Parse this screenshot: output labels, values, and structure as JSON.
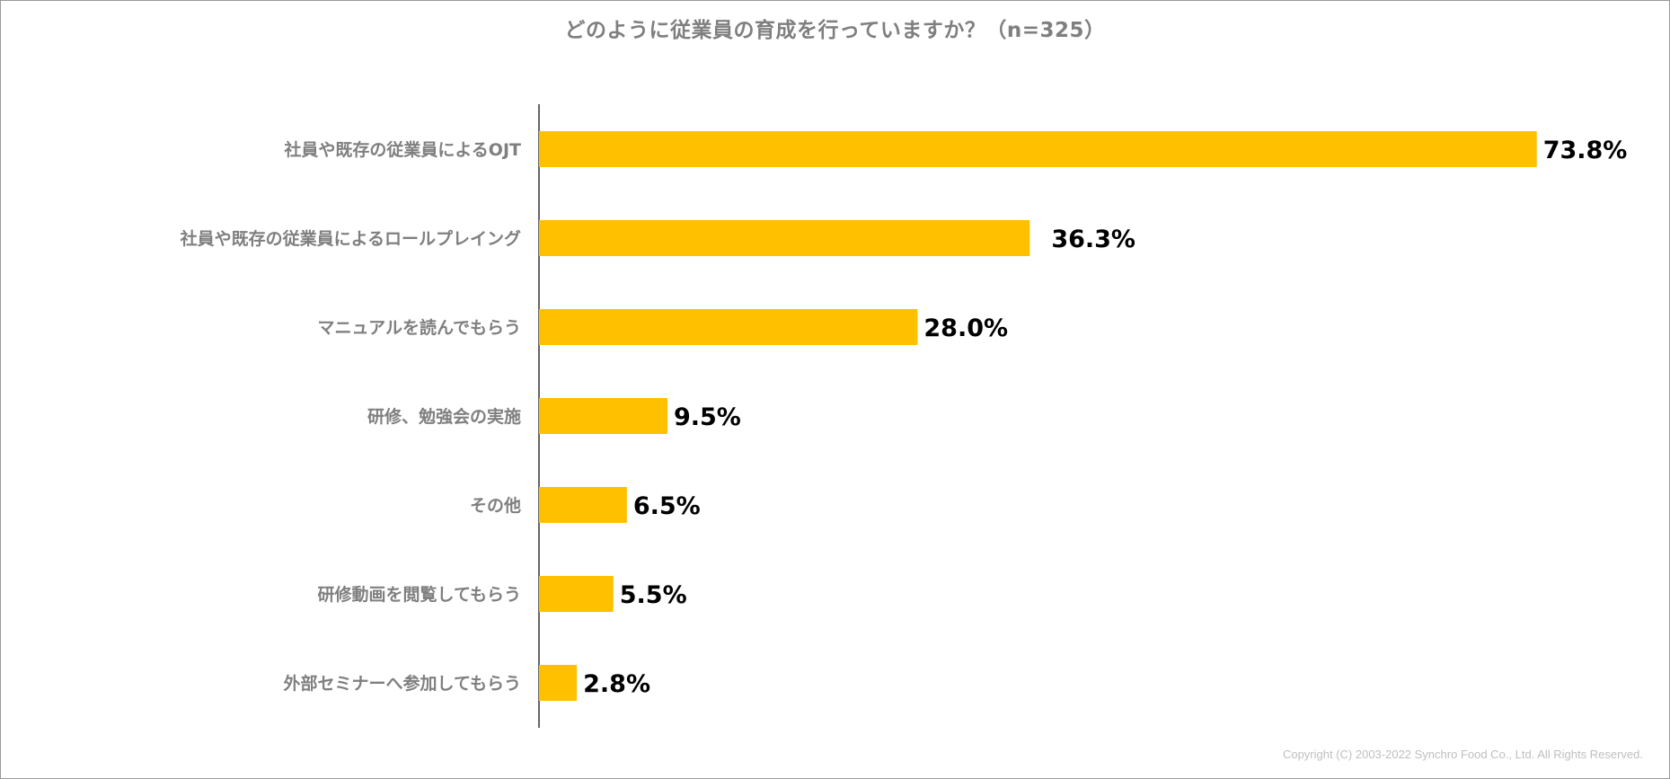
{
  "chart_data": {
    "type": "bar",
    "orientation": "horizontal",
    "title": "どのように従業員の育成を行っていますか？（n=325）",
    "categories": [
      "社員や既存の従業員によるOJT",
      "社員や既存の従業員によるロールプレイング",
      "マニュアルを読んでもらう",
      "研修、勉強会の実施",
      "その他",
      "研修動画を閲覧してもらう",
      "外部セミナーへ参加してもらう"
    ],
    "values": [
      73.8,
      36.3,
      28.0,
      9.5,
      6.5,
      5.5,
      2.8
    ],
    "value_labels": [
      "73.8%",
      "36.3%",
      "28.0%",
      "9.5%",
      "6.5%",
      "5.5%",
      "2.8%"
    ],
    "unit": "%",
    "xlim": [
      0,
      80
    ],
    "bar_color": "#FFC000",
    "xlabel": "",
    "ylabel": "",
    "grid": false,
    "legend": "none"
  },
  "footer": {
    "copyright": "Copyright (C) 2003-2022   Synchro Food Co., Ltd. All Rights Reserved."
  }
}
